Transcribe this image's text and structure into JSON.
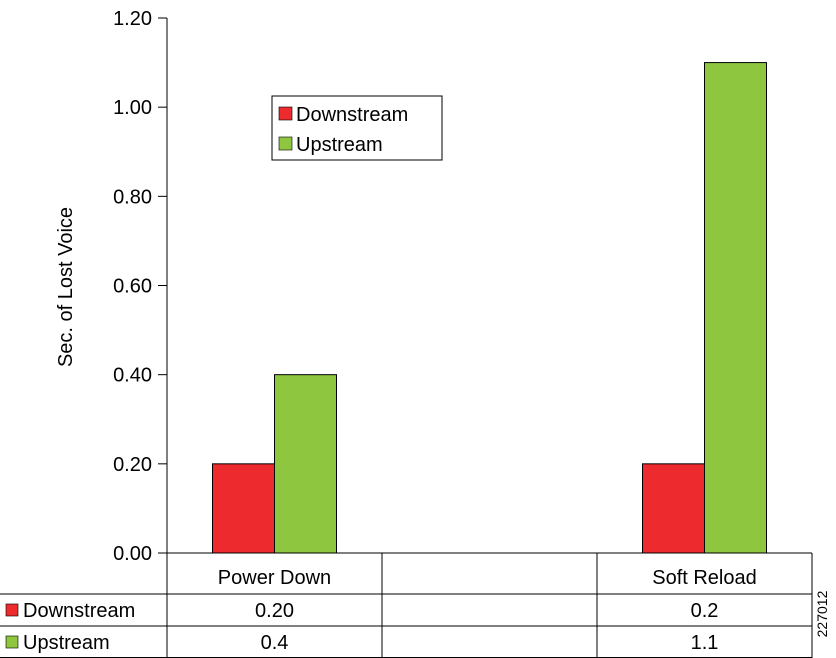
{
  "chart_data": {
    "type": "bar",
    "title": "",
    "xlabel": "",
    "ylabel": "Sec. of Lost Voice",
    "ylim": [
      0,
      1.2
    ],
    "y_ticks": [
      "0.00",
      "0.20",
      "0.40",
      "0.60",
      "0.80",
      "1.00",
      "1.20"
    ],
    "categories": [
      "Power Down",
      "",
      "Soft Reload"
    ],
    "series": [
      {
        "name": "Downstream",
        "color": "#ed2a2e",
        "values": [
          0.2,
          null,
          0.2
        ],
        "table_labels": [
          "0.20",
          "",
          "0.2"
        ]
      },
      {
        "name": "Upstream",
        "color": "#8ec63f",
        "values": [
          0.4,
          null,
          1.1
        ],
        "table_labels": [
          "0.4",
          "",
          "1.1"
        ]
      }
    ],
    "legend": {
      "placement": "top-left-inside"
    },
    "grid": false,
    "side_label": "227012"
  }
}
